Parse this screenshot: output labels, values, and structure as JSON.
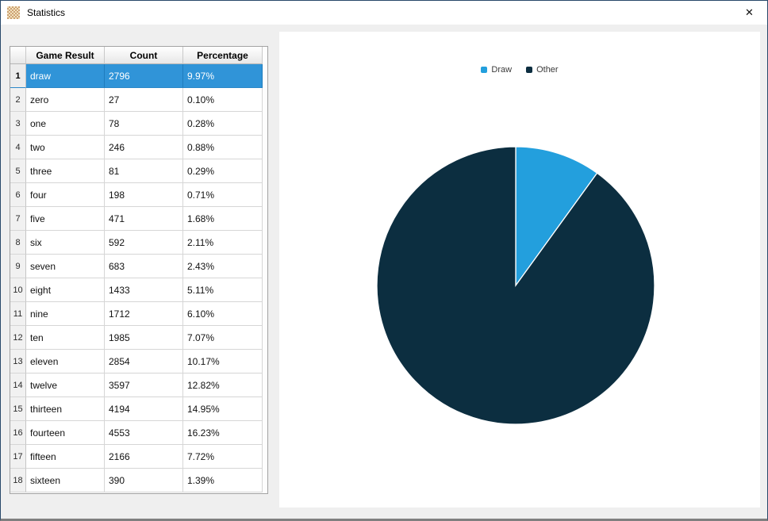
{
  "window": {
    "title": "Statistics",
    "close_glyph": "✕"
  },
  "table": {
    "headers": [
      "Game Result",
      "Count",
      "Percentage"
    ],
    "rows": [
      {
        "n": "1",
        "result": "draw",
        "count": "2796",
        "pct": "9.97%",
        "selected": true
      },
      {
        "n": "2",
        "result": "zero",
        "count": "27",
        "pct": "0.10%",
        "selected": false
      },
      {
        "n": "3",
        "result": "one",
        "count": "78",
        "pct": "0.28%",
        "selected": false
      },
      {
        "n": "4",
        "result": "two",
        "count": "246",
        "pct": "0.88%",
        "selected": false
      },
      {
        "n": "5",
        "result": "three",
        "count": "81",
        "pct": "0.29%",
        "selected": false
      },
      {
        "n": "6",
        "result": "four",
        "count": "198",
        "pct": "0.71%",
        "selected": false
      },
      {
        "n": "7",
        "result": "five",
        "count": "471",
        "pct": "1.68%",
        "selected": false
      },
      {
        "n": "8",
        "result": "six",
        "count": "592",
        "pct": "2.11%",
        "selected": false
      },
      {
        "n": "9",
        "result": "seven",
        "count": "683",
        "pct": "2.43%",
        "selected": false
      },
      {
        "n": "10",
        "result": "eight",
        "count": "1433",
        "pct": "5.11%",
        "selected": false
      },
      {
        "n": "11",
        "result": "nine",
        "count": "1712",
        "pct": "6.10%",
        "selected": false
      },
      {
        "n": "12",
        "result": "ten",
        "count": "1985",
        "pct": "7.07%",
        "selected": false
      },
      {
        "n": "13",
        "result": "eleven",
        "count": "2854",
        "pct": "10.17%",
        "selected": false
      },
      {
        "n": "14",
        "result": "twelve",
        "count": "3597",
        "pct": "12.82%",
        "selected": false
      },
      {
        "n": "15",
        "result": "thirteen",
        "count": "4194",
        "pct": "14.95%",
        "selected": false
      },
      {
        "n": "16",
        "result": "fourteen",
        "count": "4553",
        "pct": "16.23%",
        "selected": false
      },
      {
        "n": "17",
        "result": "fifteen",
        "count": "2166",
        "pct": "7.72%",
        "selected": false
      },
      {
        "n": "18",
        "result": "sixteen",
        "count": "390",
        "pct": "1.39%",
        "selected": false
      }
    ]
  },
  "chart_data": {
    "type": "pie",
    "labels": [
      "Draw",
      "Other"
    ],
    "values": [
      9.97,
      90.03
    ],
    "colors": [
      "#239fdd",
      "#0c2e40"
    ],
    "legend_position": "top",
    "start_angle_deg": -90,
    "slice_border_color": "#ffffff"
  }
}
